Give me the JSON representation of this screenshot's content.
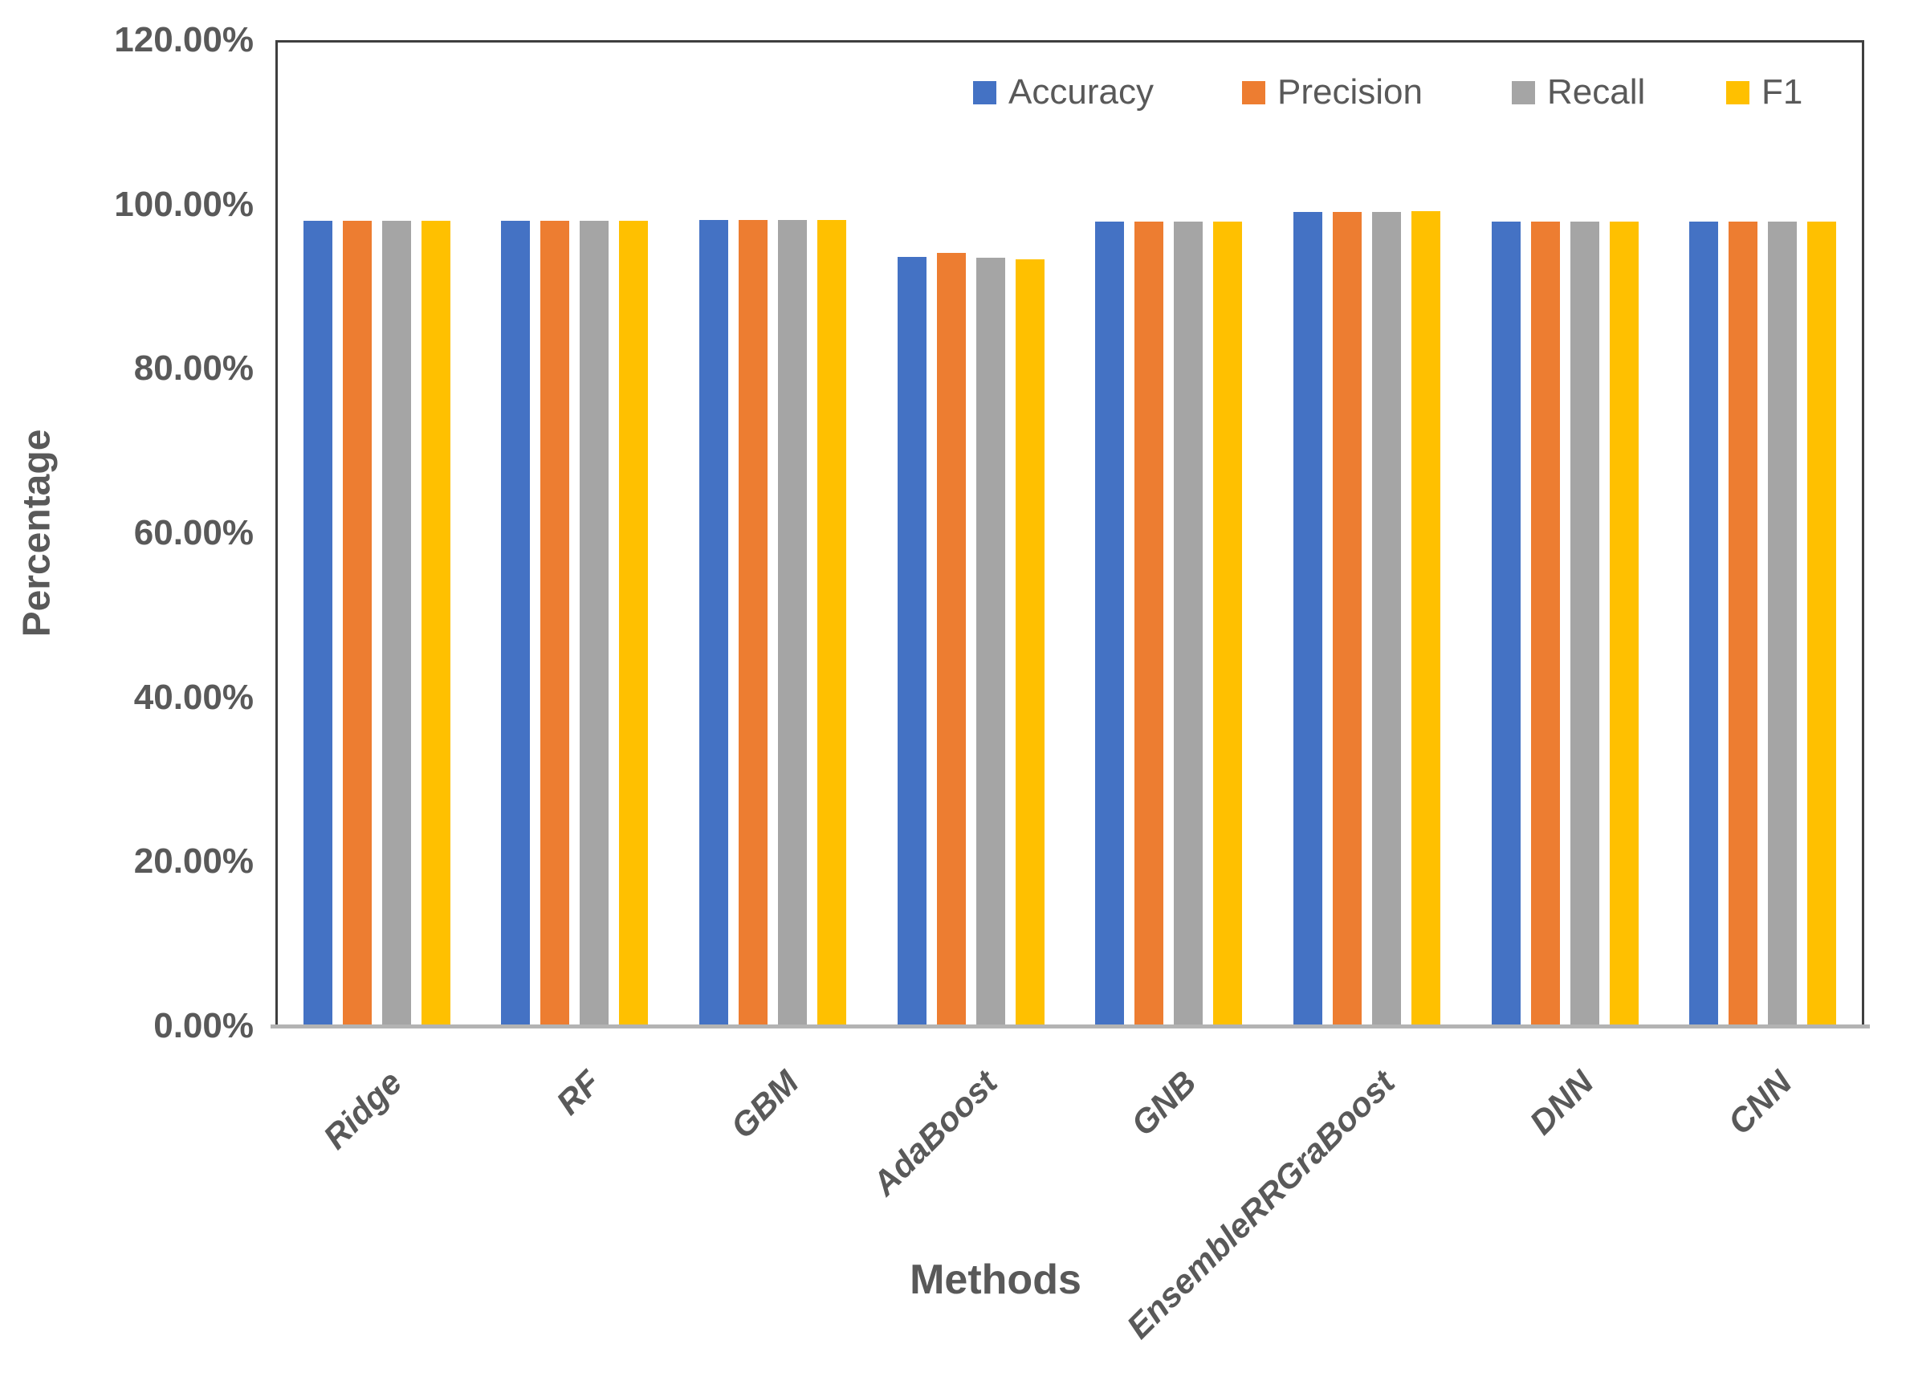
{
  "chart_data": {
    "type": "bar",
    "title": "",
    "xlabel": "Methods",
    "ylabel": "Percentage",
    "ylim": [
      0,
      120
    ],
    "y_tick_labels": [
      "0.00%",
      "20.00%",
      "40.00%",
      "60.00%",
      "80.00%",
      "100.00%",
      "120.00%"
    ],
    "categories": [
      "Ridge",
      "RF",
      "GBM",
      "AdaBoost",
      "GNB",
      "EnsembleRRGraBoost",
      "DNN",
      "CNN"
    ],
    "series": [
      {
        "name": "Accuracy",
        "color": "#4472C4",
        "values": [
          98.3,
          98.3,
          98.4,
          93.8,
          98.2,
          99.3,
          98.2,
          98.2
        ]
      },
      {
        "name": "Precision",
        "color": "#ED7D31",
        "values": [
          98.3,
          98.3,
          98.4,
          94.3,
          98.2,
          99.3,
          98.2,
          98.2
        ]
      },
      {
        "name": "Recall",
        "color": "#A5A5A5",
        "values": [
          98.3,
          98.3,
          98.4,
          93.7,
          98.2,
          99.3,
          98.2,
          98.2
        ]
      },
      {
        "name": "F1",
        "color": "#FFC000",
        "values": [
          98.3,
          98.3,
          98.4,
          93.6,
          98.2,
          99.4,
          98.2,
          98.2
        ]
      }
    ],
    "legend": [
      "Accuracy",
      "Precision",
      "Recall",
      "F1"
    ],
    "legend_position": "top-right-inside",
    "grid": false,
    "axis_text_color": "#595959"
  }
}
